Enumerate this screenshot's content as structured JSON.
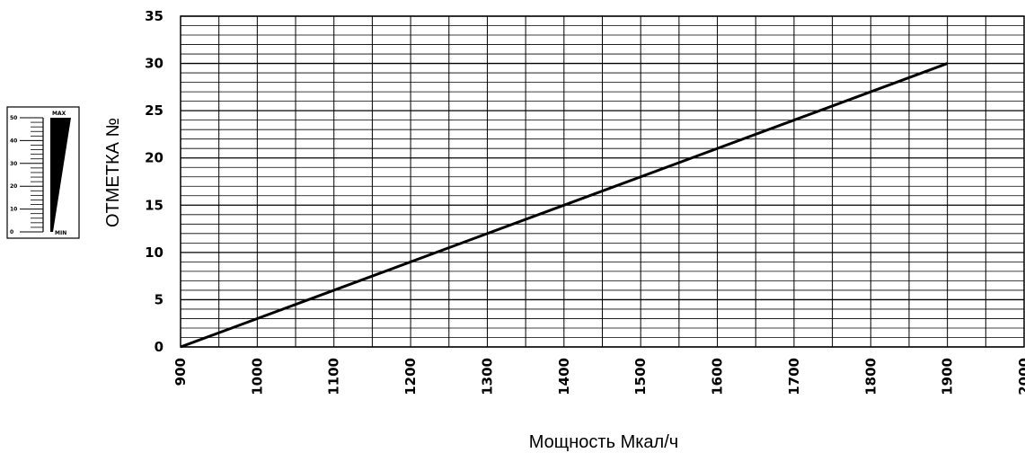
{
  "chart_data": {
    "type": "line",
    "x": [
      900,
      1900
    ],
    "series": [
      {
        "values": [
          0,
          30
        ]
      }
    ],
    "xlabel": "Мощность Мкал/ч",
    "ylabel": "ОТМЕТКА №",
    "xlim": [
      900,
      2000
    ],
    "ylim": [
      0,
      35
    ],
    "x_ticks": [
      "900",
      "1000",
      "1100",
      "1200",
      "1300",
      "1400",
      "1500",
      "1600",
      "1700",
      "1800",
      "1900",
      "2000"
    ],
    "y_ticks": [
      "0",
      "5",
      "10",
      "15",
      "20",
      "25",
      "30",
      "35"
    ],
    "grid": true,
    "grid_minor_y_step": 1,
    "grid_minor_x_step": 50,
    "colors": {
      "line": "#000000",
      "grid": "#000000"
    }
  },
  "dial": {
    "max_label": "MAX",
    "min_label": "MIN",
    "scale_labels": [
      "0",
      "10",
      "20",
      "30",
      "40",
      "50"
    ]
  }
}
